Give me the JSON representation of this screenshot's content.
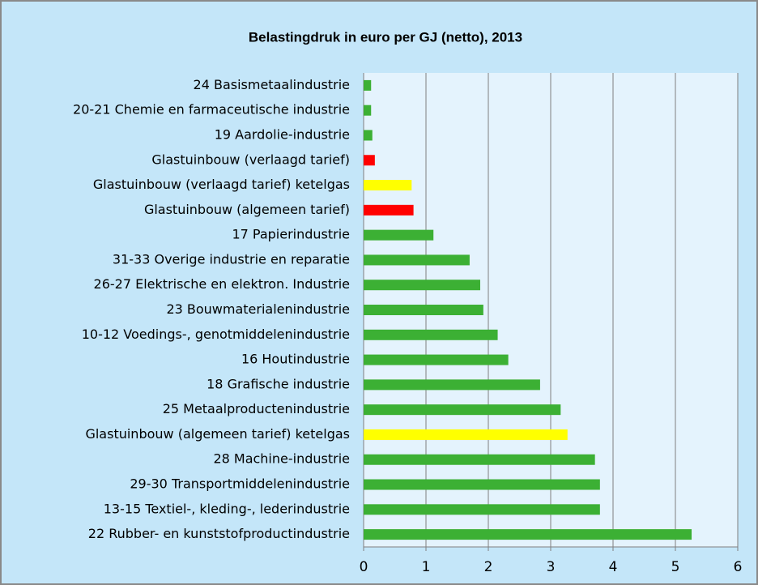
{
  "chart_data": {
    "type": "bar",
    "orientation": "horizontal",
    "title": "Belastingdruk in euro per GJ (netto), 2013",
    "categories": [
      "24 Basismetaalindustrie",
      "20-21 Chemie en farmaceutische industrie",
      "19 Aardolie-industrie",
      "Glastuinbouw (verlaagd tarief)",
      "Glastuinbouw (verlaagd tarief) ketelgas",
      "Glastuinbouw (algemeen tarief)",
      "17 Papierindustrie",
      "31-33 Overige industrie en reparatie",
      "26-27 Elektrische en elektron. Industrie",
      "23 Bouwmaterialenindustrie",
      "10-12 Voedings-, genotmiddelenindustrie",
      "16 Houtindustrie",
      "18 Grafische industrie",
      "25 Metaalproductenindustrie",
      "Glastuinbouw (algemeen tarief) ketelgas",
      "28 Machine-industrie",
      "29-30 Transportmiddelenindustrie",
      "13-15 Textiel-, kleding-, lederindustrie",
      "22 Rubber- en kunststofproductindustrie"
    ],
    "values": [
      0.12,
      0.12,
      0.14,
      0.18,
      0.77,
      0.8,
      1.12,
      1.7,
      1.87,
      1.92,
      2.15,
      2.32,
      2.83,
      3.16,
      3.27,
      3.71,
      3.79,
      3.79,
      5.26
    ],
    "colors": [
      "#3cb034",
      "#3cb034",
      "#3cb034",
      "#ff0000",
      "#ffff00",
      "#ff0000",
      "#3cb034",
      "#3cb034",
      "#3cb034",
      "#3cb034",
      "#3cb034",
      "#3cb034",
      "#3cb034",
      "#3cb034",
      "#ffff00",
      "#3cb034",
      "#3cb034",
      "#3cb034",
      "#3cb034"
    ],
    "xlim": [
      0,
      6
    ],
    "xticks": [
      0,
      1,
      2,
      3,
      4,
      5,
      6
    ],
    "grid": true
  }
}
